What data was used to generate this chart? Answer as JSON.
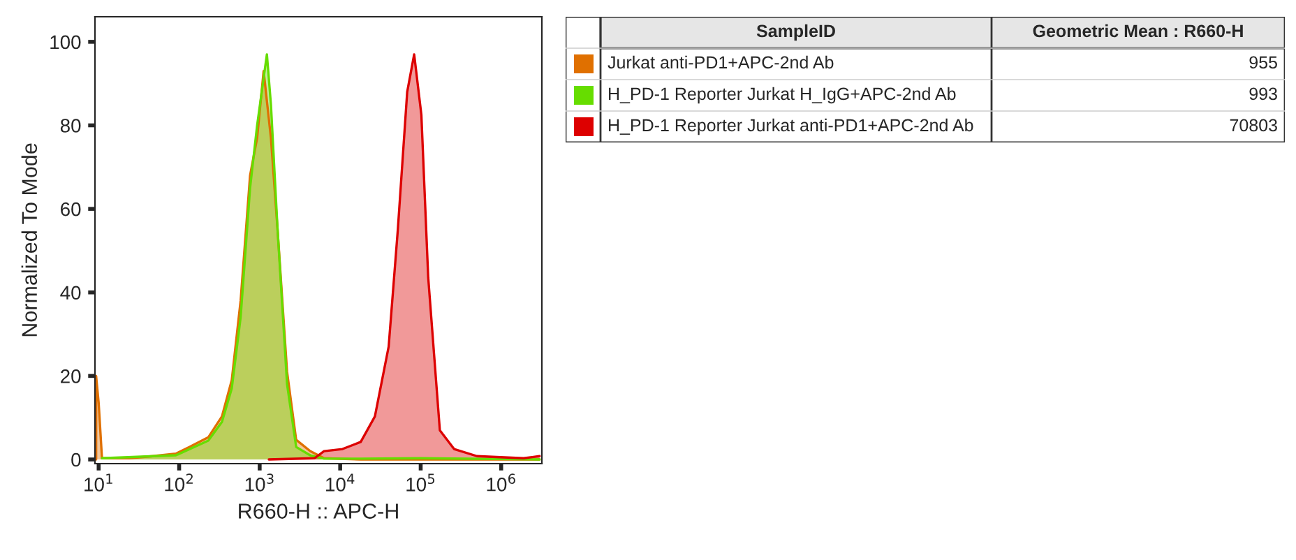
{
  "chart_data": {
    "type": "area",
    "xlabel": "R660-H :: APC-H",
    "ylabel": "Normalized To Mode",
    "log": "x",
    "xlim": [
      9,
      3200000
    ],
    "xticks": [
      {
        "value": 10,
        "label": "10$^{1}$"
      },
      {
        "value": 100,
        "label": "10$^{2}$"
      },
      {
        "value": 1000,
        "label": "10$^{3}$"
      },
      {
        "value": 10000,
        "label": "10$^{4}$"
      },
      {
        "value": 100000,
        "label": "10$^{5}$"
      },
      {
        "value": 1000000,
        "label": "10$^{6}$"
      }
    ],
    "ylim": [
      -1,
      106
    ],
    "yticks": [
      0,
      20,
      40,
      60,
      80,
      100
    ],
    "grid": false,
    "legend": "right",
    "annotations": [
      "SampleID",
      "Geometric Mean : R660-H",
      "955",
      "993",
      "70803"
    ],
    "series": [
      {
        "name": "Jurkat anti-PD1+APC-2nd Ab",
        "color": "#e07000",
        "x": [
          9.3,
          9.3,
          10,
          11,
          24,
          47,
          91,
          135,
          230,
          340,
          450,
          580,
          760,
          930,
          1120,
          1380,
          1670,
          2190,
          2840,
          4240,
          6300,
          18000,
          260000,
          3000000
        ],
        "values": [
          0,
          20,
          13.6,
          0.3,
          0.3,
          0.8,
          1.4,
          3,
          5.3,
          10.3,
          19,
          38,
          68,
          77,
          93,
          77,
          55,
          21,
          4.7,
          2,
          0.3,
          0,
          0,
          0
        ]
      },
      {
        "name": "H_PD-1 Reporter Jurkat H_IgG+APC-2nd Ab",
        "color": "#66dd00",
        "x": [
          11,
          91,
          230,
          340,
          450,
          580,
          760,
          930,
          1230,
          1380,
          1670,
          2190,
          2840,
          4240,
          6300,
          18000,
          100000,
          3000000
        ],
        "values": [
          0.3,
          1,
          4.5,
          9,
          17,
          34,
          65,
          80,
          97,
          85,
          55,
          18,
          3,
          1,
          0.2,
          0.2,
          0.3,
          0
        ]
      },
      {
        "name": "H_PD-1 Reporter Jurkat anti-PD1+APC-2nd Ab",
        "color": "#dd0000",
        "x": [
          1300,
          4800,
          6300,
          10700,
          18000,
          27000,
          40000,
          52000,
          68000,
          83000,
          102000,
          124000,
          173000,
          260000,
          500000,
          1900000,
          3000000
        ],
        "values": [
          0,
          0.3,
          2,
          2.5,
          4.2,
          10.3,
          27,
          55,
          88,
          97,
          82.5,
          43.6,
          7,
          2.5,
          0.8,
          0.3,
          0.8
        ]
      }
    ]
  }
}
